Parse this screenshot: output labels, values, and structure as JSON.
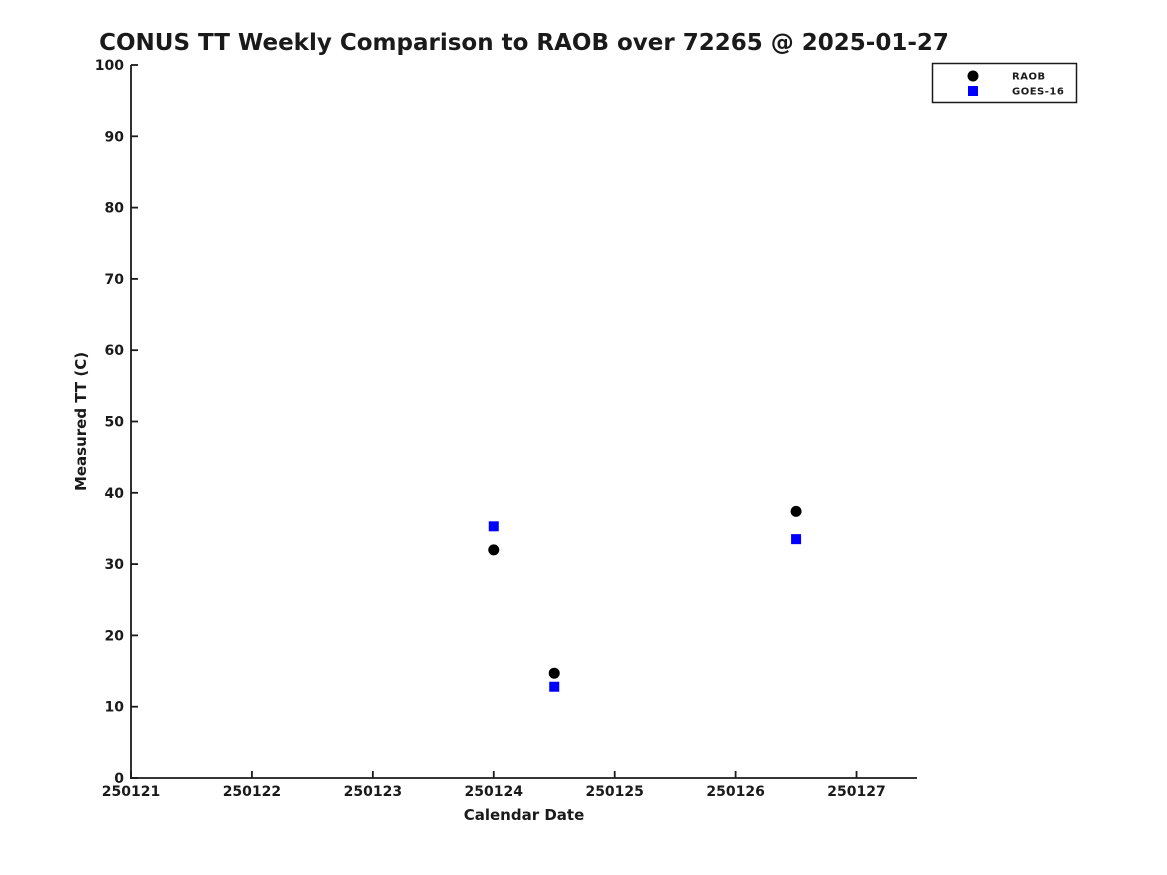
{
  "chart_data": {
    "type": "scatter",
    "title": "CONUS TT Weekly Comparison to RAOB over 72265 @ 2025-01-27",
    "xlabel": "Calendar Date",
    "ylabel": "Measured TT (C)",
    "xlim": [
      250121,
      250127.5
    ],
    "ylim": [
      0,
      100
    ],
    "xticks": [
      250121,
      250122,
      250123,
      250124,
      250125,
      250126,
      250127
    ],
    "yticks": [
      0,
      10,
      20,
      30,
      40,
      50,
      60,
      70,
      80,
      90,
      100
    ],
    "grid": false,
    "legend": {
      "position": "upper right, outside plot area",
      "entries": [
        "RAOB",
        "GOES-16"
      ]
    },
    "series": [
      {
        "name": "RAOB",
        "marker": "circle",
        "color": "#000000",
        "x": [
          250124.0,
          250124.5,
          250126.5
        ],
        "y": [
          32.0,
          14.7,
          37.4
        ]
      },
      {
        "name": "GOES-16",
        "marker": "square",
        "color": "#0000ff",
        "x": [
          250124.0,
          250124.5,
          250126.5
        ],
        "y": [
          35.3,
          12.8,
          33.5
        ]
      }
    ]
  }
}
